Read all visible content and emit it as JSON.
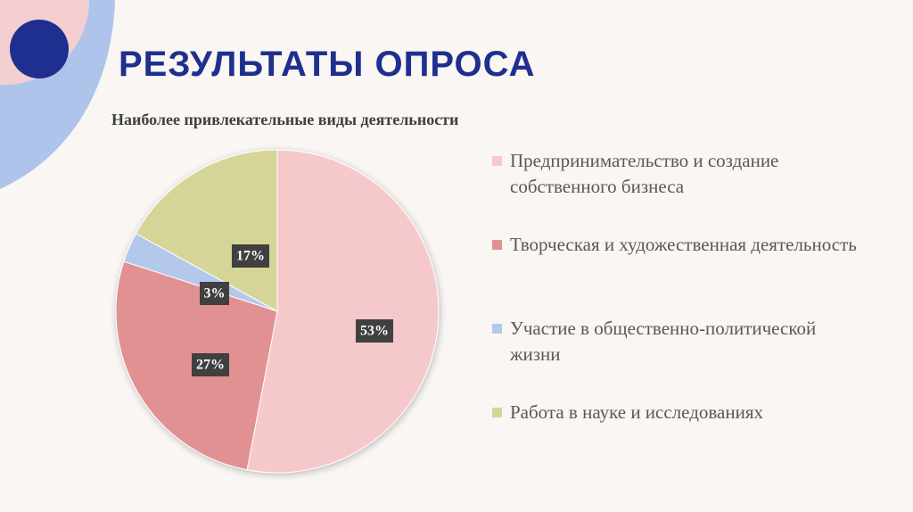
{
  "title": "РЕЗУЛЬТАТЫ ОПРОСА",
  "chart_data": {
    "type": "pie",
    "title": "Наиболее привлекательные виды деятельности",
    "slices": [
      {
        "label": "Предпринимательство и создание собственного бизнеса",
        "value": 53,
        "display": "53%",
        "color": "#f5c9cb"
      },
      {
        "label": "Творческая и художественная деятельность",
        "value": 27,
        "display": "27%",
        "color": "#e29192"
      },
      {
        "label": "Участие в общественно-политической жизни",
        "value": 3,
        "display": "3%",
        "color": "#b4c8ec"
      },
      {
        "label": "Работа в науке и исследованиях",
        "value": 17,
        "display": "17%",
        "color": "#d6d598"
      }
    ],
    "start_angle_deg": 0,
    "direction": "clockwise",
    "legend_position": "right"
  },
  "colors": {
    "title": "#1f2f8f",
    "decor_pink": "#f3cfd2",
    "decor_blue": "#aec4ea",
    "decor_dot": "#1f2f8f"
  }
}
